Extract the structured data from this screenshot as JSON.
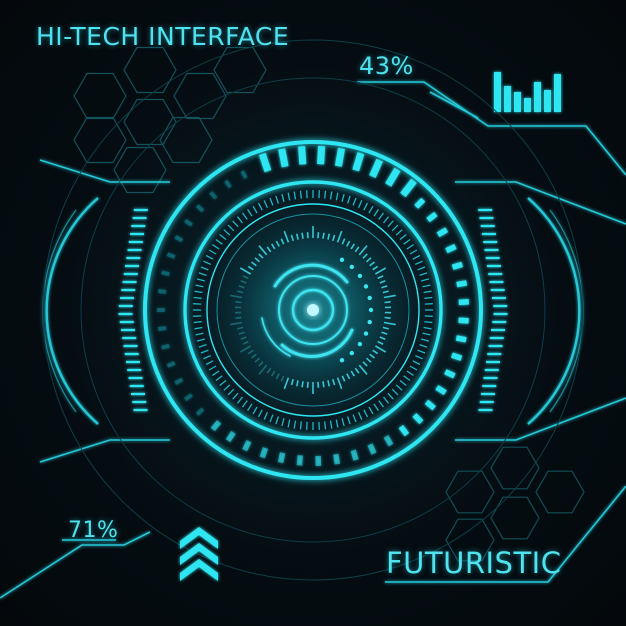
{
  "labels": {
    "title": "HI-TECH INTERFACE",
    "footer": "FUTURISTIC"
  },
  "indicators": {
    "top_readout": "43%",
    "bottom_readout": "71%",
    "top_level": 0.43,
    "bottom_level": 0.71
  },
  "icons": {
    "chevrons": "triple-chevron-up-icon",
    "hex_grid": "hexagon-grid-icon",
    "bars": "level-bars-icon"
  },
  "colors": {
    "glow": "#2ee6f2",
    "primary": "#1fc9d8",
    "dim": "#0d5a66",
    "background": "#05080b"
  }
}
